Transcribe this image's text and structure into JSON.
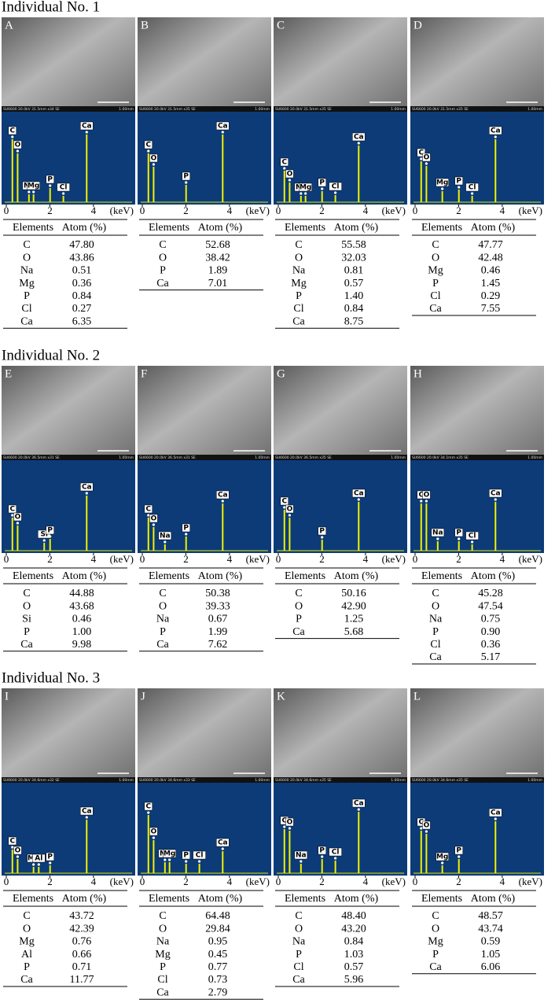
{
  "element_kev": {
    "C": 0.28,
    "O": 0.52,
    "Na": 1.04,
    "Mg": 1.25,
    "Al": 1.49,
    "Si": 1.74,
    "P": 2.01,
    "Cl": 2.62,
    "Ca": 3.69
  },
  "spectrum_axis": {
    "xlim": [
      0,
      5.7
    ],
    "xticks": [
      0,
      2,
      4
    ],
    "unit": "(keV)"
  },
  "table_header": [
    "Elements",
    "Atom (%)"
  ],
  "scale": "1.00mm",
  "sections": [
    {
      "title": "Individual No. 1",
      "panels": [
        {
          "letter": "A",
          "sem_info": "SU6600 20.0kV 31.5mm x34 SE",
          "peaks": [
            {
              "label": "C",
              "height": 80
            },
            {
              "label": "O",
              "height": 62
            },
            {
              "label": "Na",
              "height": 10
            },
            {
              "label": "Mg",
              "height": 10
            },
            {
              "label": "P",
              "height": 18
            },
            {
              "label": "Cl",
              "height": 8
            },
            {
              "label": "Ca",
              "height": 86
            }
          ],
          "rows": [
            [
              "C",
              "47.80"
            ],
            [
              "O",
              "43.86"
            ],
            [
              "Na",
              "0.51"
            ],
            [
              "Mg",
              "0.36"
            ],
            [
              "P",
              "0.84"
            ],
            [
              "Cl",
              "0.27"
            ],
            [
              "Ca",
              "6.35"
            ]
          ]
        },
        {
          "letter": "B",
          "sem_info": "SU6600 20.0kV 31.5mm x35 SE",
          "peaks": [
            {
              "label": "C",
              "height": 62
            },
            {
              "label": "O",
              "height": 45
            },
            {
              "label": "P",
              "height": 22
            },
            {
              "label": "Ca",
              "height": 86
            }
          ],
          "rows": [
            [
              "C",
              "52.68"
            ],
            [
              "O",
              "38.42"
            ],
            [
              "P",
              "1.89"
            ],
            [
              "Ca",
              "7.01"
            ]
          ]
        },
        {
          "letter": "C",
          "sem_info": "SU6600 20.0kV 31.5mm x35 SE",
          "peaks": [
            {
              "label": "C",
              "height": 40
            },
            {
              "label": "O",
              "height": 25
            },
            {
              "label": "Na",
              "height": 8
            },
            {
              "label": "Mg",
              "height": 8
            },
            {
              "label": "P",
              "height": 14
            },
            {
              "label": "Cl",
              "height": 9
            },
            {
              "label": "Ca",
              "height": 72
            }
          ],
          "rows": [
            [
              "C",
              "55.58"
            ],
            [
              "O",
              "32.03"
            ],
            [
              "Na",
              "0.81"
            ],
            [
              "Mg",
              "0.57"
            ],
            [
              "P",
              "1.40"
            ],
            [
              "Cl",
              "0.84"
            ],
            [
              "Ca",
              "8.75"
            ]
          ]
        },
        {
          "letter": "D",
          "sem_info": "SU6600 20.0kV 31.5mm x35 SE",
          "peaks": [
            {
              "label": "C",
              "height": 52
            },
            {
              "label": "O",
              "height": 46
            },
            {
              "label": "Mg",
              "height": 14
            },
            {
              "label": "P",
              "height": 16
            },
            {
              "label": "Cl",
              "height": 8
            },
            {
              "label": "Ca",
              "height": 80
            }
          ],
          "rows": [
            [
              "C",
              "47.77"
            ],
            [
              "O",
              "42.48"
            ],
            [
              "Mg",
              "0.46"
            ],
            [
              "P",
              "1.45"
            ],
            [
              "Cl",
              "0.29"
            ],
            [
              "Ca",
              "7.55"
            ]
          ]
        }
      ]
    },
    {
      "title": "Individual No. 2",
      "panels": [
        {
          "letter": "E",
          "sem_info": "SU6600 20.0kV 36.5mm x31 SE",
          "peaks": [
            {
              "label": "C",
              "height": 42
            },
            {
              "label": "O",
              "height": 32
            },
            {
              "label": "Si",
              "height": 10
            },
            {
              "label": "P",
              "height": 15
            },
            {
              "label": "Ca",
              "height": 70
            }
          ],
          "rows": [
            [
              "C",
              "44.88"
            ],
            [
              "O",
              "43.68"
            ],
            [
              "Si",
              "0.46"
            ],
            [
              "P",
              "1.00"
            ],
            [
              "Ca",
              "9.98"
            ]
          ]
        },
        {
          "letter": "F",
          "sem_info": "SU6600 20.0kV 36.5mm x31 SE",
          "peaks": [
            {
              "label": "C",
              "height": 42
            },
            {
              "label": "O",
              "height": 30
            },
            {
              "label": "Na",
              "height": 8
            },
            {
              "label": "P",
              "height": 18
            },
            {
              "label": "Ca",
              "height": 60
            }
          ],
          "rows": [
            [
              "C",
              "50.38"
            ],
            [
              "O",
              "39.33"
            ],
            [
              "Na",
              "0.67"
            ],
            [
              "P",
              "1.99"
            ],
            [
              "Ca",
              "7.62"
            ]
          ]
        },
        {
          "letter": "G",
          "sem_info": "SU6600 20.0kV 36.5mm x35 SE",
          "peaks": [
            {
              "label": "C",
              "height": 52
            },
            {
              "label": "O",
              "height": 42
            },
            {
              "label": "P",
              "height": 14
            },
            {
              "label": "Ca",
              "height": 62
            }
          ],
          "rows": [
            [
              "C",
              "50.16"
            ],
            [
              "O",
              "42.90"
            ],
            [
              "P",
              "1.25"
            ],
            [
              "Ca",
              "5.68"
            ]
          ]
        },
        {
          "letter": "H",
          "sem_info": "SU6600 20.0kV 34.1mm x35 SE",
          "peaks": [
            {
              "label": "C",
              "height": 60
            },
            {
              "label": "O",
              "height": 60
            },
            {
              "label": "Na",
              "height": 12
            },
            {
              "label": "P",
              "height": 12
            },
            {
              "label": "Cl",
              "height": 8
            },
            {
              "label": "Ca",
              "height": 62
            }
          ],
          "rows": [
            [
              "C",
              "45.28"
            ],
            [
              "O",
              "47.54"
            ],
            [
              "Na",
              "0.75"
            ],
            [
              "P",
              "0.90"
            ],
            [
              "Cl",
              "0.36"
            ],
            [
              "Ca",
              "5.17"
            ]
          ]
        }
      ]
    },
    {
      "title": "Individual No. 3",
      "panels": [
        {
          "letter": "I",
          "sem_info": "SU6600 20.0kV 34.6mm x32 SE",
          "peaks": [
            {
              "label": "C",
              "height": 30
            },
            {
              "label": "O",
              "height": 18
            },
            {
              "label": "Mg",
              "height": 8
            },
            {
              "label": "Al",
              "height": 8
            },
            {
              "label": "P",
              "height": 10
            },
            {
              "label": "Ca",
              "height": 68
            }
          ],
          "rows": [
            [
              "C",
              "43.72"
            ],
            [
              "O",
              "42.39"
            ],
            [
              "Mg",
              "0.76"
            ],
            [
              "Al",
              "0.66"
            ],
            [
              "P",
              "0.71"
            ],
            [
              "Ca",
              "11.77"
            ]
          ]
        },
        {
          "letter": "J",
          "sem_info": "SU6600 20.0kV 34.6mm x33 SE",
          "peaks": [
            {
              "label": "C",
              "height": 74
            },
            {
              "label": "O",
              "height": 42
            },
            {
              "label": "Na",
              "height": 14
            },
            {
              "label": "Mg",
              "height": 14
            },
            {
              "label": "P",
              "height": 12
            },
            {
              "label": "Cl",
              "height": 12
            },
            {
              "label": "Ca",
              "height": 28
            }
          ],
          "rows": [
            [
              "C",
              "64.48"
            ],
            [
              "O",
              "29.84"
            ],
            [
              "Na",
              "0.95"
            ],
            [
              "Mg",
              "0.45"
            ],
            [
              "P",
              "0.77"
            ],
            [
              "Cl",
              "0.73"
            ],
            [
              "Ca",
              "2.79"
            ]
          ]
        },
        {
          "letter": "K",
          "sem_info": "SU6600 20.0kV 34.6mm x35 SE",
          "peaks": [
            {
              "label": "C",
              "height": 56
            },
            {
              "label": "O",
              "height": 54
            },
            {
              "label": "Na",
              "height": 12
            },
            {
              "label": "P",
              "height": 18
            },
            {
              "label": "Cl",
              "height": 16
            },
            {
              "label": "Ca",
              "height": 78
            }
          ],
          "rows": [
            [
              "C",
              "48.40"
            ],
            [
              "O",
              "43.20"
            ],
            [
              "Na",
              "0.84"
            ],
            [
              "P",
              "1.03"
            ],
            [
              "Cl",
              "0.57"
            ],
            [
              "Ca",
              "5.96"
            ]
          ]
        },
        {
          "letter": "L",
          "sem_info": "SU6600 20.0kV 34.6mm x35 SE",
          "peaks": [
            {
              "label": "C",
              "height": 54
            },
            {
              "label": "O",
              "height": 50
            },
            {
              "label": "Mg",
              "height": 10
            },
            {
              "label": "P",
              "height": 18
            },
            {
              "label": "Ca",
              "height": 66
            }
          ],
          "rows": [
            [
              "C",
              "48.57"
            ],
            [
              "O",
              "43.74"
            ],
            [
              "Mg",
              "0.59"
            ],
            [
              "P",
              "1.05"
            ],
            [
              "Ca",
              "6.06"
            ]
          ]
        }
      ]
    }
  ]
}
